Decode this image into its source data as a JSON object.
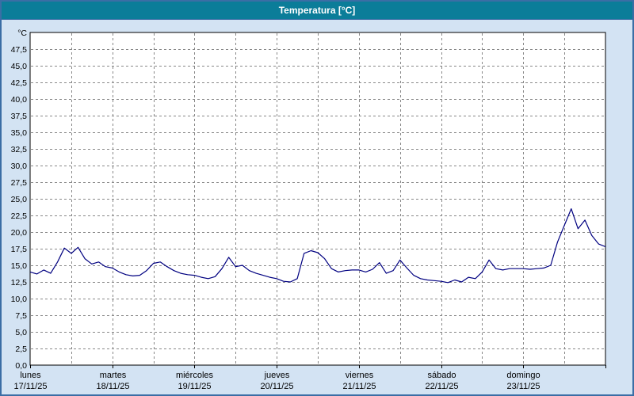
{
  "window": {
    "title": "Temperatura [°C]"
  },
  "chart_data": {
    "type": "line",
    "title": "Temperatura [°C]",
    "unit_label": "°C",
    "ylim": [
      0,
      50
    ],
    "ytick_step": 2.5,
    "ytick_label_max": 47.5,
    "x_hours_total": 168,
    "grid_hours_step": 12,
    "grid": "dashed",
    "legend_position": "none",
    "days": [
      {
        "name": "lunes",
        "date": "17/11/25"
      },
      {
        "name": "martes",
        "date": "18/11/25"
      },
      {
        "name": "miércoles",
        "date": "19/11/25"
      },
      {
        "name": "jueves",
        "date": "20/11/25"
      },
      {
        "name": "viernes",
        "date": "21/11/25"
      },
      {
        "name": "sábado",
        "date": "22/11/25"
      },
      {
        "name": "domingo",
        "date": "23/11/25"
      }
    ],
    "series": [
      {
        "name": "Temperatura",
        "color": "#000080",
        "sample_hours": 2,
        "values": [
          14.0,
          13.7,
          14.3,
          13.8,
          15.5,
          17.6,
          16.8,
          17.7,
          16.0,
          15.2,
          15.5,
          14.8,
          14.6,
          14.0,
          13.6,
          13.4,
          13.5,
          14.2,
          15.3,
          15.5,
          14.8,
          14.2,
          13.8,
          13.6,
          13.5,
          13.2,
          13.0,
          13.3,
          14.5,
          16.2,
          14.8,
          15.0,
          14.2,
          13.8,
          13.5,
          13.2,
          13.0,
          12.6,
          12.5,
          13.0,
          16.8,
          17.2,
          16.9,
          16.0,
          14.5,
          14.0,
          14.2,
          14.3,
          14.3,
          14.0,
          14.4,
          15.4,
          13.8,
          14.2,
          15.8,
          14.6,
          13.5,
          13.0,
          12.8,
          12.7,
          12.6,
          12.4,
          12.8,
          12.5,
          13.2,
          13.0,
          14.0,
          15.8,
          14.5,
          14.3,
          14.5,
          14.5,
          14.5,
          14.4,
          14.5,
          14.6,
          15.0,
          18.5,
          21.0,
          23.5,
          20.5,
          21.8,
          19.5,
          18.2,
          17.8
        ]
      }
    ]
  },
  "colors": {
    "header_bg": "#0b7d99",
    "header_text": "#ffffff",
    "page_bg": "#d3e3f3",
    "frame_border": "#3b6ea5",
    "plot_bg": "#ffffff",
    "plot_border": "#000000",
    "grid": "#888888",
    "axis_text": "#000000",
    "line": "#000080"
  }
}
